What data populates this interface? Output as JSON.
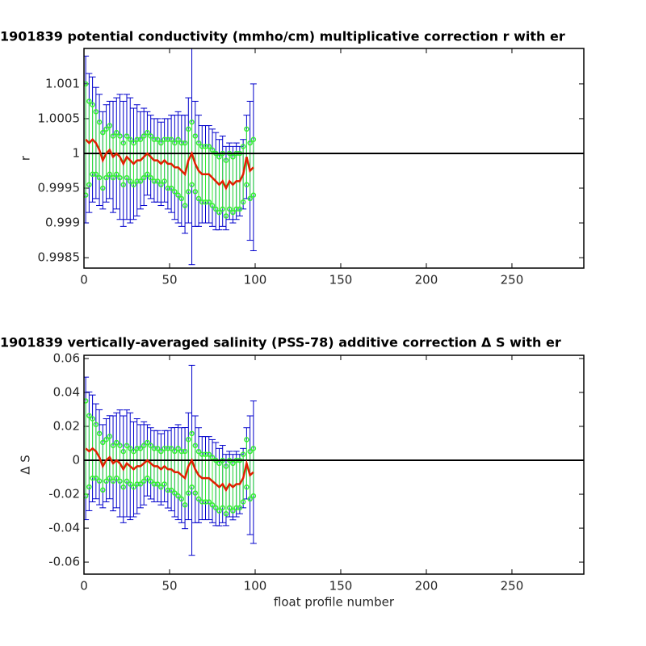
{
  "chart_data": [
    {
      "type": "errorbar",
      "title": "1901839 potential conductivity (mmho/cm) multiplicative correction r with er",
      "ylabel": "r",
      "x": [
        1,
        3,
        5,
        7,
        9,
        11,
        13,
        15,
        17,
        19,
        21,
        23,
        25,
        27,
        29,
        31,
        33,
        35,
        37,
        39,
        41,
        43,
        45,
        47,
        49,
        51,
        53,
        55,
        57,
        59,
        61,
        63,
        65,
        67,
        69,
        71,
        73,
        75,
        77,
        79,
        81,
        83,
        85,
        87,
        89,
        91,
        93,
        95,
        97,
        99
      ],
      "values": [
        1.0002,
        1.00015,
        1.0002,
        1.00015,
        1.00005,
        0.9999,
        1,
        1.00005,
        0.99995,
        1,
        0.99995,
        0.99985,
        0.99995,
        0.9999,
        0.99985,
        0.9999,
        0.9999,
        0.99995,
        1,
        0.99995,
        0.9999,
        0.9999,
        0.99985,
        0.9999,
        0.99985,
        0.99985,
        0.9998,
        0.9998,
        0.99975,
        0.9997,
        0.9999,
        1,
        0.99985,
        0.99975,
        0.9997,
        0.9997,
        0.9997,
        0.99965,
        0.9996,
        0.99955,
        0.9996,
        0.9995,
        0.9996,
        0.99955,
        0.9996,
        0.9996,
        0.9997,
        0.99995,
        0.99975,
        0.9998
      ],
      "error_inner": [
        0.0008,
        0.0006,
        0.0005,
        0.00045,
        0.0004,
        0.0004,
        0.00035,
        0.00035,
        0.0003,
        0.0003,
        0.0003,
        0.0003,
        0.0003,
        0.0003,
        0.0003,
        0.0003,
        0.0003,
        0.0003,
        0.0003,
        0.0003,
        0.0003,
        0.0003,
        0.0003,
        0.0003,
        0.00035,
        0.00035,
        0.00035,
        0.0004,
        0.0004,
        0.00045,
        0.00045,
        0.00045,
        0.0004,
        0.0004,
        0.0004,
        0.0004,
        0.0004,
        0.0004,
        0.0004,
        0.0004,
        0.0004,
        0.0004,
        0.0004,
        0.0004,
        0.0004,
        0.0004,
        0.0004,
        0.0004,
        0.0004,
        0.0004
      ],
      "error_outer": [
        0.0012,
        0.001,
        0.0009,
        0.0008,
        0.0008,
        0.0007,
        0.0007,
        0.0007,
        0.0008,
        0.0008,
        0.0009,
        0.0009,
        0.0009,
        0.0009,
        0.0008,
        0.0008,
        0.0007,
        0.0007,
        0.0006,
        0.0006,
        0.0006,
        0.0006,
        0.0006,
        0.0006,
        0.00065,
        0.0007,
        0.00075,
        0.0008,
        0.0008,
        0.00085,
        0.0009,
        0.0016,
        0.0009,
        0.0008,
        0.0007,
        0.0007,
        0.0007,
        0.0007,
        0.0007,
        0.00065,
        0.00065,
        0.0006,
        0.00055,
        0.00055,
        0.00055,
        0.0005,
        0.0005,
        0.0006,
        0.001,
        0.0012
      ],
      "line_color": "#e02000",
      "inner_color": "#33ee33",
      "outer_color": "#0000cc",
      "reference": 1,
      "reference_color": "#000000",
      "xlim": [
        0,
        292
      ],
      "xticks": [
        0,
        50,
        100,
        150,
        200,
        250
      ],
      "ylim": [
        0.99835,
        1.00151
      ],
      "yticks": [
        0.9985,
        0.999,
        0.9995,
        1,
        1.0005,
        1.001
      ]
    },
    {
      "type": "errorbar",
      "title": "1901839 vertically-averaged salinity (PSS-78) additive correction Δ S with er",
      "ylabel": "Δ S",
      "xlabel": "float profile number",
      "x": [
        1,
        3,
        5,
        7,
        9,
        11,
        13,
        15,
        17,
        19,
        21,
        23,
        25,
        27,
        29,
        31,
        33,
        35,
        37,
        39,
        41,
        43,
        45,
        47,
        49,
        51,
        53,
        55,
        57,
        59,
        61,
        63,
        65,
        67,
        69,
        71,
        73,
        75,
        77,
        79,
        81,
        83,
        85,
        87,
        89,
        91,
        93,
        95,
        97,
        99
      ],
      "values": [
        0.007,
        0.0053,
        0.007,
        0.0053,
        0.0018,
        -0.0035,
        0,
        0.0018,
        -0.0018,
        0,
        -0.0018,
        -0.0053,
        -0.0018,
        -0.0035,
        -0.0053,
        -0.0035,
        -0.0035,
        -0.0018,
        0,
        -0.0018,
        -0.0035,
        -0.0035,
        -0.0053,
        -0.0035,
        -0.0053,
        -0.0053,
        -0.007,
        -0.007,
        -0.0088,
        -0.0105,
        -0.0035,
        0,
        -0.0053,
        -0.0088,
        -0.0105,
        -0.0105,
        -0.0105,
        -0.0123,
        -0.014,
        -0.0158,
        -0.014,
        -0.0175,
        -0.014,
        -0.0158,
        -0.014,
        -0.014,
        -0.0105,
        -0.0018,
        -0.0088,
        -0.007
      ],
      "error_inner": [
        0.028,
        0.021,
        0.0175,
        0.0158,
        0.014,
        0.014,
        0.0123,
        0.0123,
        0.0105,
        0.0105,
        0.0105,
        0.0105,
        0.0105,
        0.0105,
        0.0105,
        0.0105,
        0.0105,
        0.0105,
        0.0105,
        0.0105,
        0.0105,
        0.0105,
        0.0105,
        0.0105,
        0.0123,
        0.0123,
        0.0123,
        0.014,
        0.014,
        0.0158,
        0.0158,
        0.0158,
        0.014,
        0.014,
        0.014,
        0.014,
        0.014,
        0.014,
        0.014,
        0.014,
        0.014,
        0.014,
        0.014,
        0.014,
        0.014,
        0.014,
        0.014,
        0.014,
        0.014,
        0.014
      ],
      "error_outer": [
        0.042,
        0.035,
        0.0315,
        0.028,
        0.028,
        0.0245,
        0.0245,
        0.0245,
        0.028,
        0.028,
        0.0315,
        0.0315,
        0.0315,
        0.0315,
        0.028,
        0.028,
        0.0245,
        0.0245,
        0.021,
        0.021,
        0.021,
        0.021,
        0.021,
        0.021,
        0.0228,
        0.0245,
        0.0263,
        0.028,
        0.028,
        0.0298,
        0.0315,
        0.056,
        0.0315,
        0.028,
        0.0245,
        0.0245,
        0.0245,
        0.0245,
        0.0245,
        0.0228,
        0.0228,
        0.021,
        0.0193,
        0.0193,
        0.0193,
        0.0175,
        0.0175,
        0.021,
        0.035,
        0.042
      ],
      "line_color": "#e02000",
      "inner_color": "#33ee33",
      "outer_color": "#0000cc",
      "reference": 0,
      "reference_color": "#000000",
      "xlim": [
        0,
        292
      ],
      "xticks": [
        0,
        50,
        100,
        150,
        200,
        250
      ],
      "ylim": [
        -0.0671,
        0.0619
      ],
      "yticks": [
        -0.06,
        -0.04,
        -0.02,
        0,
        0.02,
        0.04,
        0.06
      ]
    }
  ]
}
